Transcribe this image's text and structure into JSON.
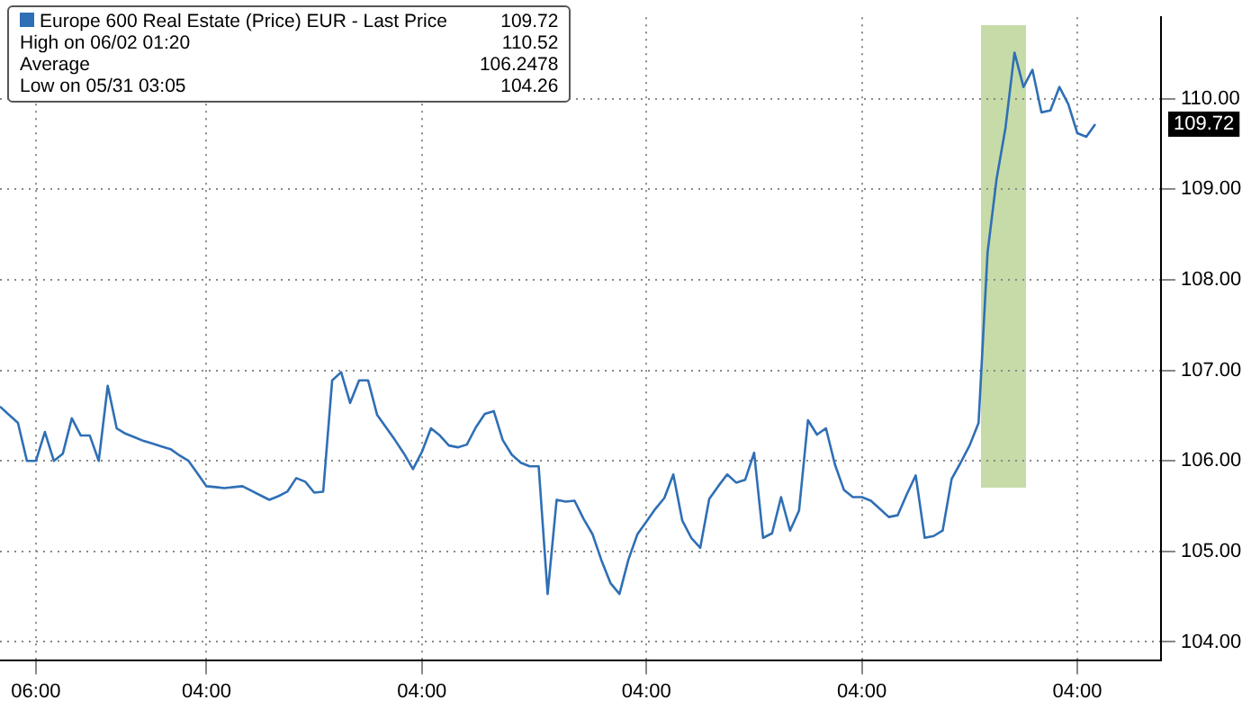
{
  "chart_data": {
    "type": "line",
    "categories": [
      null,
      null,
      null,
      null,
      "06:00",
      null,
      null,
      null,
      null,
      null,
      null,
      null,
      null,
      null,
      null,
      null,
      null,
      null,
      null,
      null,
      null,
      null,
      null,
      "04:00",
      null,
      null,
      null,
      null,
      null,
      null,
      null,
      null,
      null,
      null,
      null,
      null,
      null,
      null,
      null,
      null,
      null,
      null,
      null,
      null,
      null,
      null,
      null,
      "04:00",
      null,
      null,
      null,
      null,
      null,
      null,
      null,
      null,
      null,
      null,
      null,
      null,
      null,
      null,
      null,
      null,
      null,
      null,
      null,
      null,
      null,
      null,
      null,
      null,
      "04:00",
      null,
      null,
      null,
      null,
      null,
      null,
      null,
      null,
      null,
      null,
      null,
      null,
      null,
      null,
      null,
      null,
      null,
      null,
      null,
      null,
      null,
      null,
      null,
      "04:00",
      null,
      null,
      null,
      null,
      null,
      null,
      null,
      null,
      null,
      null,
      null,
      null,
      null,
      null,
      null,
      null,
      null,
      null,
      null,
      null,
      null,
      null,
      null,
      "04:00",
      null,
      null
    ],
    "series": [
      {
        "name": "Europe 600 Real Estate (Price) EUR - Last Price",
        "color": "#2f6fb5",
        "values": [
          106.6,
          106.51,
          106.42,
          106.0,
          106.0,
          106.32,
          106.0,
          106.08,
          106.47,
          106.28,
          106.28,
          106.0,
          106.83,
          106.36,
          106.3,
          106.26,
          106.22,
          106.19,
          106.16,
          106.13,
          106.06,
          106.0,
          105.86,
          105.72,
          105.71,
          105.7,
          105.71,
          105.72,
          105.67,
          105.62,
          105.57,
          105.61,
          105.66,
          105.81,
          105.77,
          105.65,
          105.66,
          106.89,
          106.98,
          106.64,
          106.89,
          106.89,
          106.51,
          106.37,
          106.23,
          106.08,
          105.91,
          106.1,
          106.36,
          106.28,
          106.17,
          106.15,
          106.18,
          106.37,
          106.52,
          106.55,
          106.23,
          106.07,
          105.98,
          105.94,
          105.94,
          104.53,
          105.57,
          105.55,
          105.56,
          105.36,
          105.19,
          104.9,
          104.65,
          104.53,
          104.91,
          105.19,
          105.33,
          105.47,
          105.59,
          105.85,
          105.34,
          105.15,
          105.04,
          105.58,
          105.72,
          105.85,
          105.76,
          105.79,
          106.09,
          105.15,
          105.2,
          105.6,
          105.23,
          105.45,
          106.45,
          106.29,
          106.36,
          105.96,
          105.68,
          105.6,
          105.6,
          105.56,
          105.47,
          105.38,
          105.4,
          105.63,
          105.84,
          105.15,
          105.17,
          105.23,
          105.8,
          105.98,
          106.17,
          106.42,
          108.3,
          109.11,
          109.68,
          110.51,
          110.13,
          110.32,
          109.85,
          109.87,
          110.13,
          109.94,
          109.62,
          109.58,
          109.72
        ]
      }
    ],
    "ylim": [
      103.8,
      110.9
    ],
    "yticks": [
      {
        "value": 104,
        "label": "104.00"
      },
      {
        "value": 105,
        "label": "105.00"
      },
      {
        "value": 106,
        "label": "106.00"
      },
      {
        "value": 107,
        "label": "107.00"
      },
      {
        "value": 108,
        "label": "108.00"
      },
      {
        "value": 109,
        "label": "109.00"
      },
      {
        "value": 110,
        "label": "110.00"
      }
    ],
    "grid": true,
    "line_style": "solid",
    "marker": "none",
    "legend": "top left",
    "annotations": [
      "109.72",
      "109.72",
      "High on 06/02 01:20",
      "110.52",
      "Average",
      "106.2478",
      "Low on 05/31 03:05",
      "104.26"
    ]
  }
}
